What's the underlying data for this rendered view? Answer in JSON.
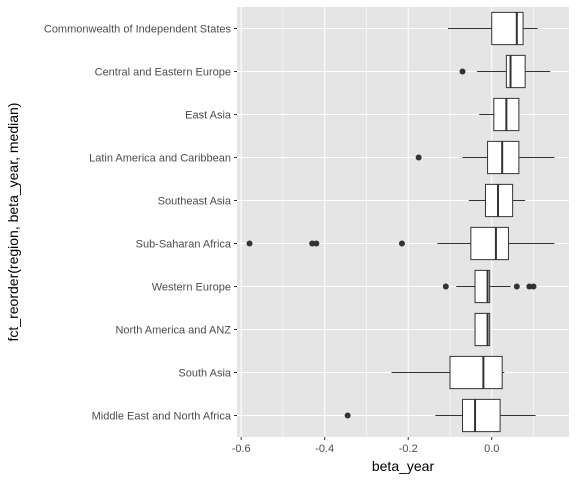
{
  "chart_data": {
    "type": "boxplot",
    "orientation": "horizontal",
    "xlabel": "beta_year",
    "ylabel": "fct_reorder(region, beta_year, median)",
    "xlim": [
      -0.61,
      0.185
    ],
    "x_ticks": [
      -0.6,
      -0.4,
      -0.2,
      0.0
    ],
    "x_tick_labels": [
      "-0.6",
      "-0.4",
      "-0.2",
      "0.0"
    ],
    "grid": true,
    "panel_background": "#e5e5e5",
    "grid_color": "#ffffff",
    "box_fill": "#ffffff",
    "box_stroke": "#333333",
    "outlier_color": "#333333",
    "categories": [
      "Middle East and North Africa",
      "South Asia",
      "North America and ANZ",
      "Western Europe",
      "Sub-Saharan Africa",
      "Southeast Asia",
      "Latin America and Caribbean",
      "East Asia",
      "Central and Eastern Europe",
      "Commonwealth of Independent States"
    ],
    "boxes": [
      {
        "category": "Middle East and North Africa",
        "whisker_low": -0.135,
        "q1": -0.07,
        "median": -0.04,
        "q3": 0.02,
        "whisker_high": 0.105,
        "outliers": [
          -0.345
        ]
      },
      {
        "category": "South Asia",
        "whisker_low": -0.24,
        "q1": -0.1,
        "median": -0.02,
        "q3": 0.025,
        "whisker_high": 0.03,
        "outliers": []
      },
      {
        "category": "North America and ANZ",
        "whisker_low": -0.04,
        "q1": -0.04,
        "median": -0.01,
        "q3": -0.005,
        "whisker_high": -0.005,
        "outliers": []
      },
      {
        "category": "Western Europe",
        "whisker_low": -0.085,
        "q1": -0.04,
        "median": -0.01,
        "q3": -0.005,
        "whisker_high": 0.045,
        "outliers": [
          -0.11,
          0.06,
          0.09,
          0.1
        ]
      },
      {
        "category": "Sub-Saharan Africa",
        "whisker_low": -0.13,
        "q1": -0.05,
        "median": 0.01,
        "q3": 0.04,
        "whisker_high": 0.15,
        "outliers": [
          -0.58,
          -0.43,
          -0.42,
          -0.215
        ]
      },
      {
        "category": "Southeast Asia",
        "whisker_low": -0.055,
        "q1": -0.015,
        "median": 0.015,
        "q3": 0.05,
        "whisker_high": 0.08,
        "outliers": []
      },
      {
        "category": "Latin America and Caribbean",
        "whisker_low": -0.07,
        "q1": -0.01,
        "median": 0.025,
        "q3": 0.065,
        "whisker_high": 0.15,
        "outliers": [
          -0.175
        ]
      },
      {
        "category": "East Asia",
        "whisker_low": -0.03,
        "q1": 0.005,
        "median": 0.035,
        "q3": 0.065,
        "whisker_high": 0.065,
        "outliers": []
      },
      {
        "category": "Central and Eastern Europe",
        "whisker_low": -0.035,
        "q1": 0.035,
        "median": 0.045,
        "q3": 0.08,
        "whisker_high": 0.14,
        "outliers": [
          -0.07
        ]
      },
      {
        "category": "Commonwealth of Independent States",
        "whisker_low": -0.105,
        "q1": 0.0,
        "median": 0.06,
        "q3": 0.075,
        "whisker_high": 0.11,
        "outliers": []
      }
    ]
  }
}
